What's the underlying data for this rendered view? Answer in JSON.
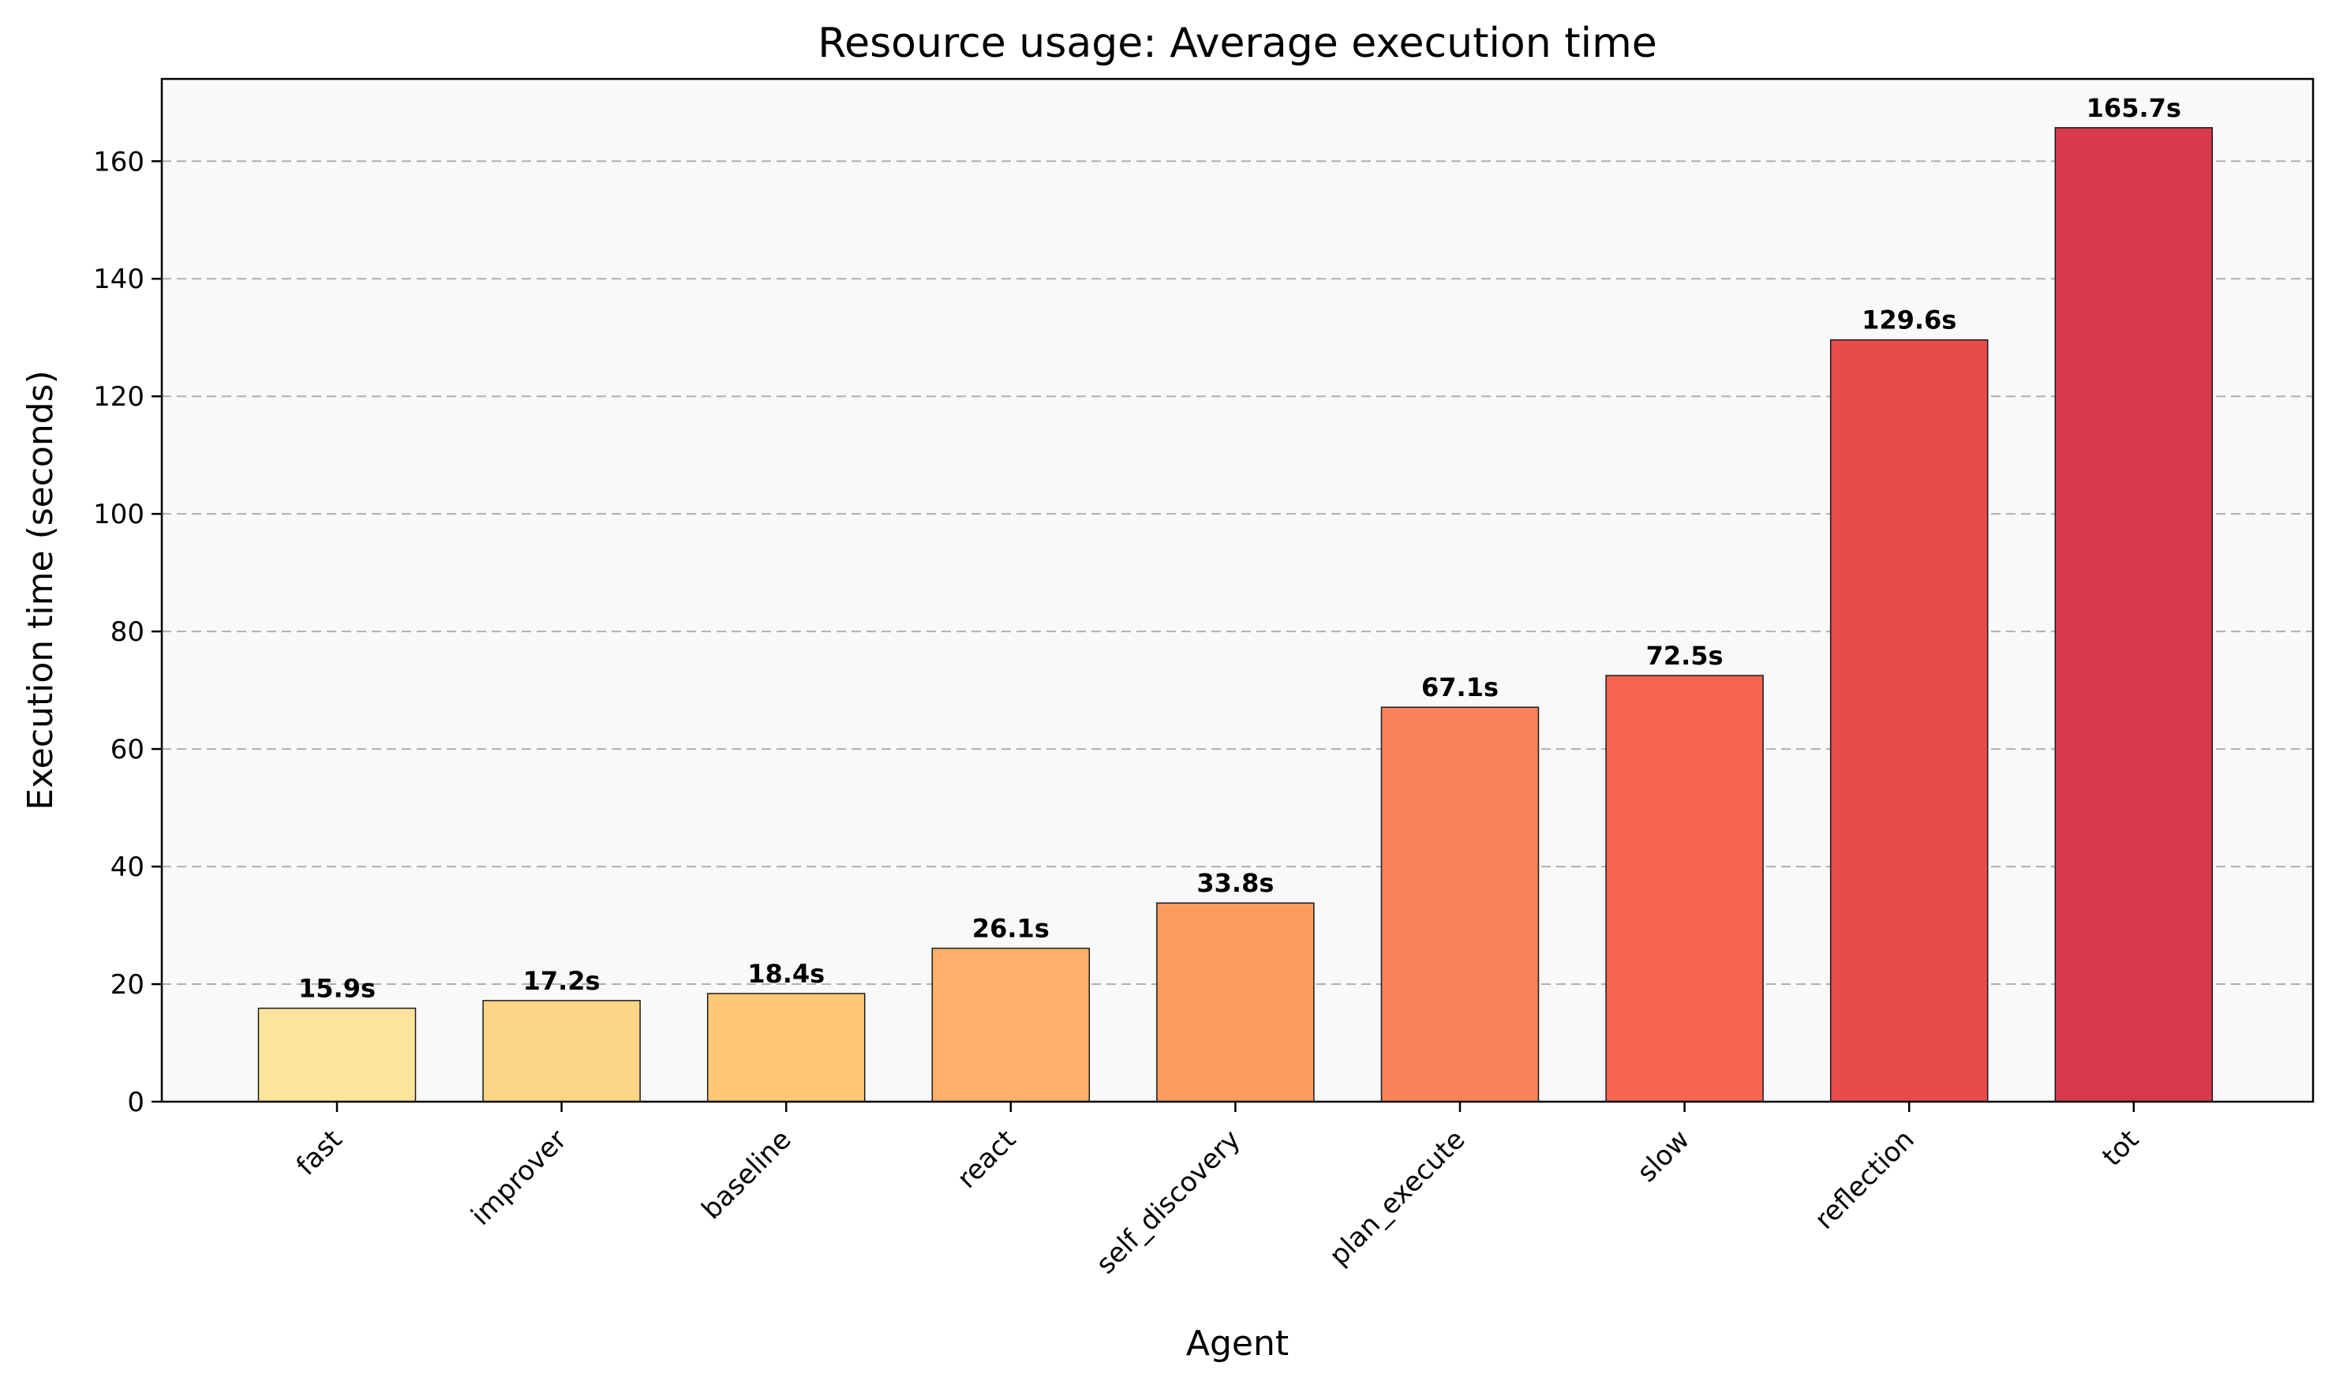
{
  "chart_data": {
    "type": "bar",
    "title": "Resource usage: Average execution time",
    "xlabel": "Agent",
    "ylabel": "Execution time (seconds)",
    "categories": [
      "fast",
      "improver",
      "baseline",
      "react",
      "self_discovery",
      "plan_execute",
      "slow",
      "reflection",
      "tot"
    ],
    "values": [
      15.9,
      17.2,
      18.4,
      26.1,
      33.8,
      67.1,
      72.5,
      129.6,
      165.7
    ],
    "data_labels": [
      "15.9s",
      "17.2s",
      "18.4s",
      "26.1s",
      "33.8s",
      "67.1s",
      "72.5s",
      "129.6s",
      "165.7s"
    ],
    "colors": [
      "#fde49c",
      "#fdd587",
      "#fec876",
      "#fdb16a",
      "#fc9d5f",
      "#fa8359",
      "#f6654f",
      "#e84c4a",
      "#d83a4b"
    ],
    "ylim": [
      0,
      174
    ],
    "yticks": [
      0,
      20,
      40,
      60,
      80,
      100,
      120,
      140,
      160
    ],
    "grid": "y-dashed",
    "plot_background": "#f7f9fb"
  }
}
